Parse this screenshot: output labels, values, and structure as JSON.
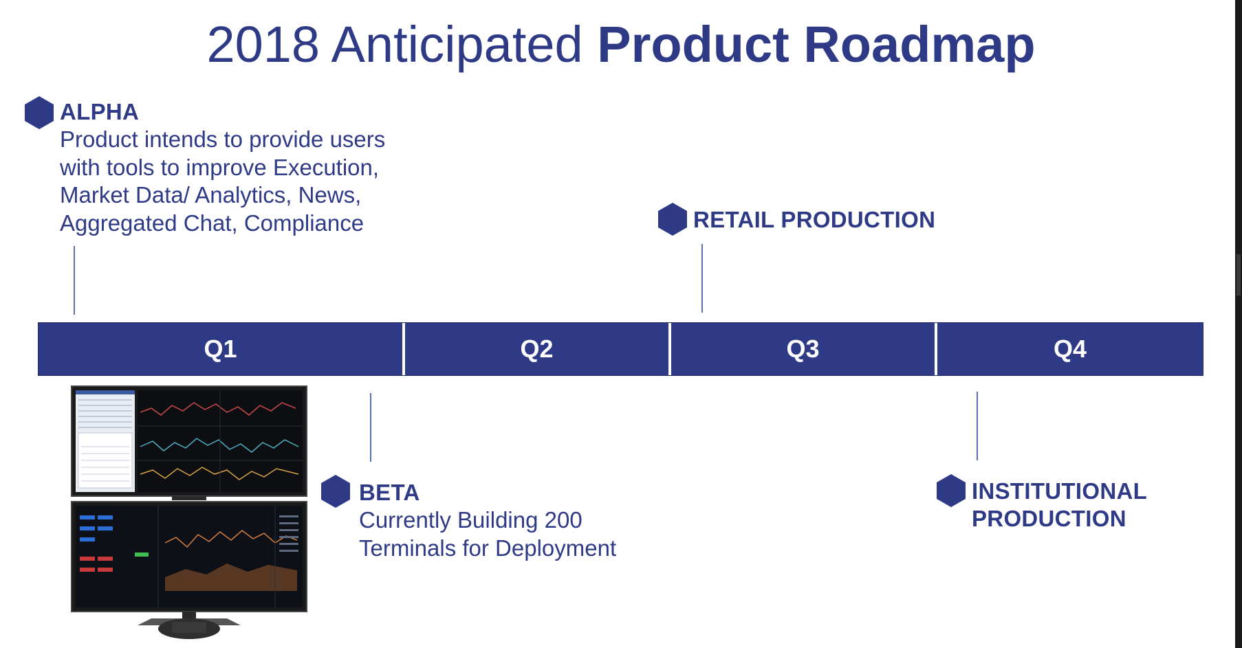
{
  "title": {
    "light": "2018 Anticipated",
    "bold": "Product Roadmap"
  },
  "milestones": {
    "alpha": {
      "title": "ALPHA",
      "lines": [
        "Product intends to provide users",
        "with tools to improve Execution,",
        "Market Data/ Analytics, News,",
        "Aggregated Chat, Compliance"
      ]
    },
    "retail": {
      "title": "RETAIL PRODUCTION"
    },
    "beta": {
      "title": "BETA",
      "lines": [
        "Currently Building 200",
        "Terminals for Deployment"
      ]
    },
    "institutional": {
      "title_lines": [
        "INSTITUTIONAL",
        "PRODUCTION"
      ]
    }
  },
  "quarters": [
    "Q1",
    "Q2",
    "Q3",
    "Q4"
  ],
  "colors": {
    "primary": "#2e3a86",
    "timeline_bar": "#2e3a86",
    "connector": "#5a6fb0"
  },
  "icons": {
    "milestone": "hexagon-icon",
    "image": "trading-terminal-monitor"
  }
}
